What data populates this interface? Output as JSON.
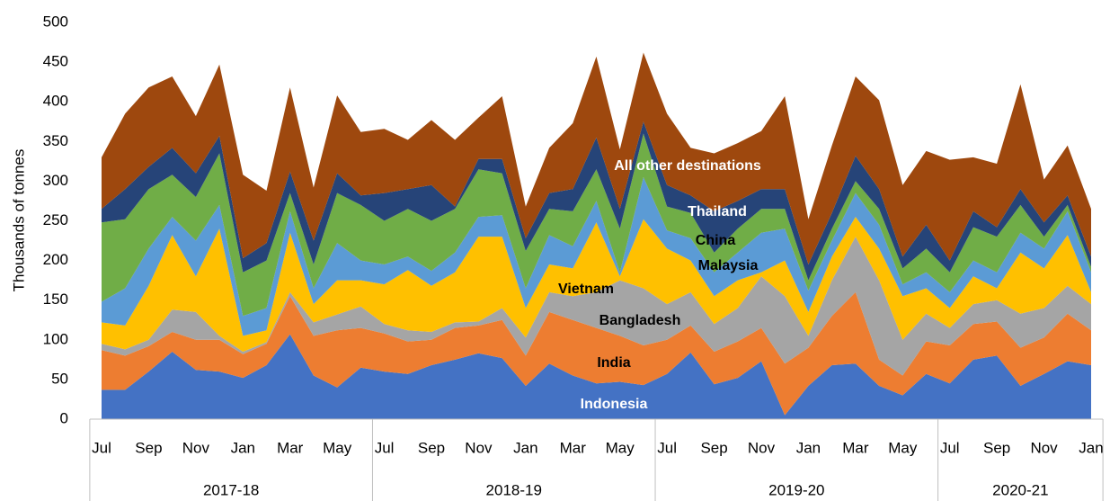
{
  "chart_data": {
    "type": "stacked_area",
    "y_label": "Thousands of tonnes",
    "ylim": [
      0,
      500
    ],
    "yticks": [
      0,
      50,
      100,
      150,
      200,
      250,
      300,
      350,
      400,
      450,
      500
    ],
    "grid": false,
    "categories": [
      "Jul",
      null,
      "Sep",
      null,
      "Nov",
      null,
      "Jan",
      null,
      "Mar",
      null,
      "May",
      null,
      "Jul",
      null,
      "Sep",
      null,
      "Nov",
      null,
      "Jan",
      null,
      "Mar",
      null,
      "May",
      null,
      "Jul",
      null,
      "Sep",
      null,
      "Nov",
      null,
      "Jan",
      null,
      "Mar",
      null,
      "May",
      null,
      "Jul",
      null,
      "Sep",
      null,
      "Nov",
      null,
      "Jan"
    ],
    "groups": [
      {
        "label": "2017-18",
        "count": 12
      },
      {
        "label": "2018-19",
        "count": 12
      },
      {
        "label": "2019-20",
        "count": 12
      },
      {
        "label": "2020-21",
        "count": 7
      }
    ],
    "series": [
      {
        "name": "Indonesia",
        "color": "#4472c4",
        "label_color": "#ffffff",
        "values": [
          37,
          37,
          60,
          85,
          62,
          60,
          52,
          68,
          107,
          55,
          40,
          65,
          60,
          57,
          68,
          75,
          83,
          77,
          42,
          70,
          55,
          45,
          47,
          43,
          57,
          84,
          44,
          52,
          73,
          5,
          42,
          68,
          70,
          42,
          30,
          57,
          45,
          75,
          80,
          42,
          57,
          73,
          68
        ]
      },
      {
        "name": "India",
        "color": "#ed7d31",
        "label_color": "#000000",
        "values": [
          50,
          43,
          32,
          25,
          38,
          40,
          30,
          27,
          48,
          50,
          72,
          50,
          48,
          41,
          32,
          40,
          35,
          48,
          38,
          65,
          70,
          70,
          58,
          50,
          43,
          34,
          41,
          46,
          42,
          65,
          48,
          62,
          90,
          33,
          25,
          41,
          48,
          45,
          43,
          48,
          46,
          60,
          44
        ]
      },
      {
        "name": "Bangladesh",
        "color": "#a5a5a5",
        "label_color": "#000000",
        "values": [
          8,
          8,
          8,
          28,
          35,
          5,
          3,
          2,
          5,
          17,
          20,
          27,
          12,
          14,
          10,
          7,
          5,
          15,
          23,
          25,
          30,
          45,
          70,
          72,
          45,
          42,
          35,
          42,
          65,
          85,
          15,
          45,
          70,
          100,
          45,
          35,
          22,
          25,
          27,
          43,
          37,
          35,
          33
        ]
      },
      {
        "name": "Vietnam",
        "color": "#ffc000",
        "label_color": "#000000",
        "values": [
          27,
          30,
          68,
          94,
          45,
          135,
          20,
          15,
          75,
          23,
          43,
          33,
          50,
          76,
          58,
          63,
          107,
          90,
          37,
          35,
          35,
          88,
          5,
          87,
          70,
          40,
          35,
          35,
          5,
          45,
          30,
          30,
          25,
          40,
          55,
          32,
          25,
          35,
          15,
          77,
          50,
          64,
          15
        ]
      },
      {
        "name": "Malaysia",
        "color": "#5b9bd5",
        "label_color": "#000000",
        "values": [
          26,
          47,
          47,
          23,
          45,
          30,
          25,
          28,
          27,
          20,
          47,
          25,
          25,
          17,
          19,
          25,
          25,
          27,
          25,
          37,
          28,
          27,
          5,
          53,
          23,
          28,
          30,
          35,
          50,
          40,
          27,
          20,
          30,
          30,
          15,
          20,
          20,
          20,
          20,
          25,
          25,
          30,
          25
        ]
      },
      {
        "name": "China",
        "color": "#70ad47",
        "label_color": "#000000",
        "values": [
          100,
          87,
          75,
          53,
          55,
          65,
          55,
          60,
          23,
          30,
          63,
          70,
          55,
          60,
          63,
          55,
          60,
          53,
          47,
          33,
          44,
          40,
          55,
          55,
          30,
          32,
          25,
          30,
          30,
          25,
          13,
          15,
          15,
          20,
          20,
          30,
          25,
          42,
          45,
          35,
          15,
          8,
          7
        ]
      },
      {
        "name": "Thailand",
        "color": "#264478",
        "label_color": "#ffffff",
        "values": [
          17,
          38,
          28,
          34,
          30,
          22,
          18,
          22,
          27,
          30,
          25,
          12,
          35,
          25,
          45,
          3,
          13,
          18,
          16,
          20,
          28,
          40,
          25,
          15,
          27,
          22,
          52,
          35,
          25,
          25,
          20,
          20,
          32,
          25,
          15,
          30,
          15,
          20,
          12,
          20,
          18,
          12,
          13
        ]
      },
      {
        "name": "All other destinations",
        "color": "#9e480e",
        "label_color": "#ffffff",
        "values": [
          65,
          95,
          100,
          90,
          72,
          90,
          105,
          66,
          106,
          67,
          98,
          80,
          81,
          62,
          82,
          84,
          52,
          79,
          40,
          57,
          83,
          102,
          75,
          87,
          90,
          60,
          73,
          73,
          73,
          117,
          57,
          85,
          100,
          112,
          90,
          93,
          127,
          68,
          80,
          132,
          54,
          63,
          60
        ]
      }
    ]
  }
}
